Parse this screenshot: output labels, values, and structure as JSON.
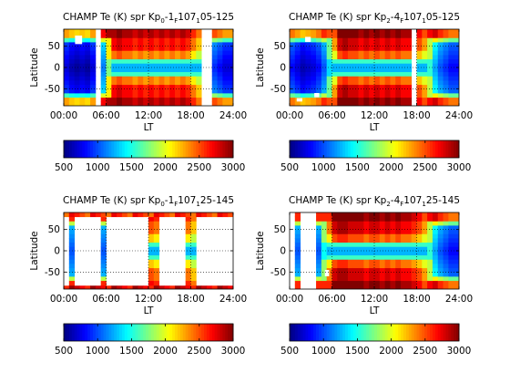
{
  "chart_data": [
    {
      "type": "heatmap",
      "title": {
        "pre": "CHAMP Te (K) spr Kp",
        "a": "0",
        "b": "-1",
        "c": "F",
        "d": "107",
        "e": "1",
        "f": "05-125"
      },
      "xlabel": "LT",
      "ylabel": "Latitude",
      "xlim": [
        0,
        24
      ],
      "ylim": [
        -90,
        90
      ],
      "xticks": [
        "00:00",
        "06:00",
        "12:00",
        "18:00",
        "24:00"
      ],
      "yticks": [
        "50",
        "0",
        "-50"
      ],
      "grid": true,
      "lt_columns": [
        {
          "lt": 0.0,
          "pattern": "blue",
          "peak": 1000
        },
        {
          "lt": 0.75,
          "pattern": "blue",
          "peak": 900
        },
        {
          "lt": 1.5,
          "pattern": "blue",
          "peak": 850
        },
        {
          "lt": 2.25,
          "pattern": "blue",
          "peak": 900
        },
        {
          "lt": 3.0,
          "pattern": "blue",
          "peak": 850
        },
        {
          "lt": 3.75,
          "pattern": "blue",
          "peak": 1000
        },
        {
          "lt": 4.5,
          "pattern": "blue",
          "peak": 1100
        },
        {
          "lt": 5.25,
          "pattern": "blue",
          "peak": 1400
        },
        {
          "lt": 6.0,
          "pattern": "mixed",
          "peak": 2100
        },
        {
          "lt": 6.75,
          "pattern": "cross",
          "peak": 2700
        },
        {
          "lt": 7.5,
          "pattern": "cross",
          "peak": 2800
        },
        {
          "lt": 8.25,
          "pattern": "cross",
          "peak": 2700
        },
        {
          "lt": 9.0,
          "pattern": "cross",
          "peak": 2700
        },
        {
          "lt": 9.75,
          "pattern": "cross",
          "peak": 2600
        },
        {
          "lt": 10.5,
          "pattern": "cross",
          "peak": 2700
        },
        {
          "lt": 11.25,
          "pattern": "cross",
          "peak": 2600
        },
        {
          "lt": 12.0,
          "pattern": "cross",
          "peak": 2700
        },
        {
          "lt": 12.75,
          "pattern": "cross",
          "peak": 2600
        },
        {
          "lt": 13.5,
          "pattern": "cross",
          "peak": 2700
        },
        {
          "lt": 14.25,
          "pattern": "cross",
          "peak": 2600
        },
        {
          "lt": 15.0,
          "pattern": "cross",
          "peak": 2700
        },
        {
          "lt": 15.75,
          "pattern": "cross",
          "peak": 2600
        },
        {
          "lt": 16.5,
          "pattern": "cross",
          "peak": 2700
        },
        {
          "lt": 17.25,
          "pattern": "cross",
          "peak": 2600
        },
        {
          "lt": 18.0,
          "pattern": "cross",
          "peak": 2400
        },
        {
          "lt": 18.75,
          "pattern": "cross",
          "peak": 2200
        },
        {
          "lt": 19.5,
          "pattern": "mixed",
          "peak": 1800
        },
        {
          "lt": 20.25,
          "pattern": "blue",
          "peak": 1400
        },
        {
          "lt": 21.0,
          "pattern": "blue",
          "peak": 1200
        },
        {
          "lt": 21.75,
          "pattern": "blue",
          "peak": 1100
        },
        {
          "lt": 22.5,
          "pattern": "blue",
          "peak": 1000
        },
        {
          "lt": 23.25,
          "pattern": "blue",
          "peak": 1000
        }
      ],
      "gaps": [
        [
          3.8,
          4.6
        ],
        [
          18.9,
          19.6
        ],
        [
          20.2,
          20.9
        ]
      ],
      "white_patches": [
        [
          1.6,
          2.6,
          55,
          75
        ]
      ]
    },
    {
      "type": "heatmap",
      "title": {
        "pre": "CHAMP Te (K) spr Kp",
        "a": "2",
        "b": "-4",
        "c": "F",
        "d": "107",
        "e": "1",
        "f": "05-125"
      },
      "xlabel": "LT",
      "ylabel": "Latitude",
      "xlim": [
        0,
        24
      ],
      "ylim": [
        -90,
        90
      ],
      "xticks": [
        "00:00",
        "06:00",
        "12:00",
        "18:00",
        "24:00"
      ],
      "yticks": [
        "50",
        "0",
        "-50"
      ],
      "grid": true,
      "lt_columns": [
        {
          "lt": 0.0,
          "pattern": "blue",
          "peak": 1100
        },
        {
          "lt": 0.75,
          "pattern": "blue",
          "peak": 1000
        },
        {
          "lt": 1.5,
          "pattern": "blue",
          "peak": 900
        },
        {
          "lt": 2.25,
          "pattern": "blue",
          "peak": 950
        },
        {
          "lt": 3.0,
          "pattern": "blue",
          "peak": 1000
        },
        {
          "lt": 3.75,
          "pattern": "blue",
          "peak": 1100
        },
        {
          "lt": 4.5,
          "pattern": "blue",
          "peak": 1300
        },
        {
          "lt": 5.25,
          "pattern": "mixed",
          "peak": 1700
        },
        {
          "lt": 6.0,
          "pattern": "cross",
          "peak": 2300
        },
        {
          "lt": 6.75,
          "pattern": "cross",
          "peak": 2800
        },
        {
          "lt": 7.5,
          "pattern": "cross",
          "peak": 2900
        },
        {
          "lt": 8.25,
          "pattern": "cross",
          "peak": 2800
        },
        {
          "lt": 9.0,
          "pattern": "cross",
          "peak": 2800
        },
        {
          "lt": 9.75,
          "pattern": "cross",
          "peak": 2700
        },
        {
          "lt": 10.5,
          "pattern": "cross",
          "peak": 2800
        },
        {
          "lt": 11.25,
          "pattern": "cross",
          "peak": 2700
        },
        {
          "lt": 12.0,
          "pattern": "cross",
          "peak": 2800
        },
        {
          "lt": 12.75,
          "pattern": "cross",
          "peak": 2700
        },
        {
          "lt": 13.5,
          "pattern": "cross",
          "peak": 2800
        },
        {
          "lt": 14.25,
          "pattern": "cross",
          "peak": 2700
        },
        {
          "lt": 15.0,
          "pattern": "cross",
          "peak": 2800
        },
        {
          "lt": 15.75,
          "pattern": "cross",
          "peak": 2700
        },
        {
          "lt": 16.5,
          "pattern": "cross",
          "peak": 2700
        },
        {
          "lt": 17.25,
          "pattern": "cross",
          "peak": 2600
        },
        {
          "lt": 18.0,
          "pattern": "cross",
          "peak": 2500
        },
        {
          "lt": 18.75,
          "pattern": "cross",
          "peak": 2300
        },
        {
          "lt": 19.5,
          "pattern": "mixed",
          "peak": 1900
        },
        {
          "lt": 20.25,
          "pattern": "blue",
          "peak": 1500
        },
        {
          "lt": 21.0,
          "pattern": "blue",
          "peak": 1300
        },
        {
          "lt": 21.75,
          "pattern": "blue",
          "peak": 1200
        },
        {
          "lt": 22.5,
          "pattern": "blue",
          "peak": 1100
        },
        {
          "lt": 23.25,
          "pattern": "blue",
          "peak": 1100
        }
      ],
      "gaps": [
        [
          17.0,
          17.6
        ]
      ],
      "white_patches": [
        [
          2.2,
          3.0,
          60,
          72
        ],
        [
          3.5,
          4.2,
          -70,
          -60
        ],
        [
          1.0,
          1.8,
          -80,
          -72
        ]
      ]
    },
    {
      "type": "heatmap",
      "title": {
        "pre": "CHAMP Te (K) spr Kp",
        "a": "0",
        "b": "-1",
        "c": "F",
        "d": "107",
        "e": "1",
        "f": "25-145"
      },
      "xlabel": "LT",
      "ylabel": "Latitude",
      "xlim": [
        0,
        24
      ],
      "ylim": [
        -90,
        90
      ],
      "xticks": [
        "00:00",
        "06:00",
        "12:00",
        "18:00",
        "24:00"
      ],
      "yticks": [
        "50",
        "0",
        "-50"
      ],
      "grid": true,
      "lt_columns": [
        {
          "lt": 0.75,
          "pattern": "blue",
          "peak": 1300
        },
        {
          "lt": 5.25,
          "pattern": "blue",
          "peak": 1300
        },
        {
          "lt": 12.0,
          "pattern": "cross",
          "peak": 2500
        },
        {
          "lt": 12.75,
          "pattern": "cross",
          "peak": 2400
        },
        {
          "lt": 17.25,
          "pattern": "cross",
          "peak": 2400
        },
        {
          "lt": 18.0,
          "pattern": "cross",
          "peak": 2200
        }
      ],
      "gaps": [],
      "white_patches": [],
      "edge_bands": true
    },
    {
      "type": "heatmap",
      "title": {
        "pre": "CHAMP Te (K) spr Kp",
        "a": "2",
        "b": "-4",
        "c": "F",
        "d": "107",
        "e": "1",
        "f": "25-145"
      },
      "xlabel": "LT",
      "ylabel": "Latitude",
      "xlim": [
        0,
        24
      ],
      "ylim": [
        -90,
        90
      ],
      "xticks": [
        "00:00",
        "06:00",
        "12:00",
        "18:00",
        "24:00"
      ],
      "yticks": [
        "50",
        "0",
        "-50"
      ],
      "grid": true,
      "lt_columns": [
        {
          "lt": 0.75,
          "pattern": "blue",
          "peak": 1300
        },
        {
          "lt": 3.75,
          "pattern": "blue",
          "peak": 1300
        },
        {
          "lt": 4.5,
          "pattern": "mixed",
          "peak": 1800
        },
        {
          "lt": 5.25,
          "pattern": "cross",
          "peak": 2400
        },
        {
          "lt": 6.0,
          "pattern": "cross",
          "peak": 2800
        },
        {
          "lt": 6.75,
          "pattern": "cross",
          "peak": 2900
        },
        {
          "lt": 7.5,
          "pattern": "cross",
          "peak": 2900
        },
        {
          "lt": 8.25,
          "pattern": "cross",
          "peak": 2800
        },
        {
          "lt": 9.0,
          "pattern": "cross",
          "peak": 2800
        },
        {
          "lt": 9.75,
          "pattern": "cross",
          "peak": 2800
        },
        {
          "lt": 10.5,
          "pattern": "cross",
          "peak": 2700
        },
        {
          "lt": 11.25,
          "pattern": "cross",
          "peak": 2800
        },
        {
          "lt": 12.0,
          "pattern": "cross",
          "peak": 2800
        },
        {
          "lt": 12.75,
          "pattern": "cross",
          "peak": 2700
        },
        {
          "lt": 13.5,
          "pattern": "cross",
          "peak": 2800
        },
        {
          "lt": 14.25,
          "pattern": "cross",
          "peak": 2700
        },
        {
          "lt": 15.0,
          "pattern": "cross",
          "peak": 2800
        },
        {
          "lt": 15.75,
          "pattern": "cross",
          "peak": 2700
        },
        {
          "lt": 16.5,
          "pattern": "cross",
          "peak": 2700
        },
        {
          "lt": 17.25,
          "pattern": "cross",
          "peak": 2600
        },
        {
          "lt": 18.0,
          "pattern": "cross",
          "peak": 2500
        },
        {
          "lt": 18.75,
          "pattern": "cross",
          "peak": 2300
        },
        {
          "lt": 19.5,
          "pattern": "mixed",
          "peak": 1900
        },
        {
          "lt": 20.25,
          "pattern": "blue",
          "peak": 1500
        },
        {
          "lt": 21.0,
          "pattern": "blue",
          "peak": 1300
        },
        {
          "lt": 21.75,
          "pattern": "blue",
          "peak": 1200
        },
        {
          "lt": 22.5,
          "pattern": "blue",
          "peak": 1100
        },
        {
          "lt": 23.25,
          "pattern": "blue",
          "peak": 1100
        }
      ],
      "gaps": [],
      "white_patches": [
        [
          5.0,
          5.6,
          -60,
          -45
        ]
      ]
    }
  ],
  "colorbar": {
    "colormap": "jet",
    "range": [
      500,
      3000
    ],
    "ticks": [
      "500",
      "1000",
      "1500",
      "2000",
      "2500",
      "3000"
    ]
  }
}
